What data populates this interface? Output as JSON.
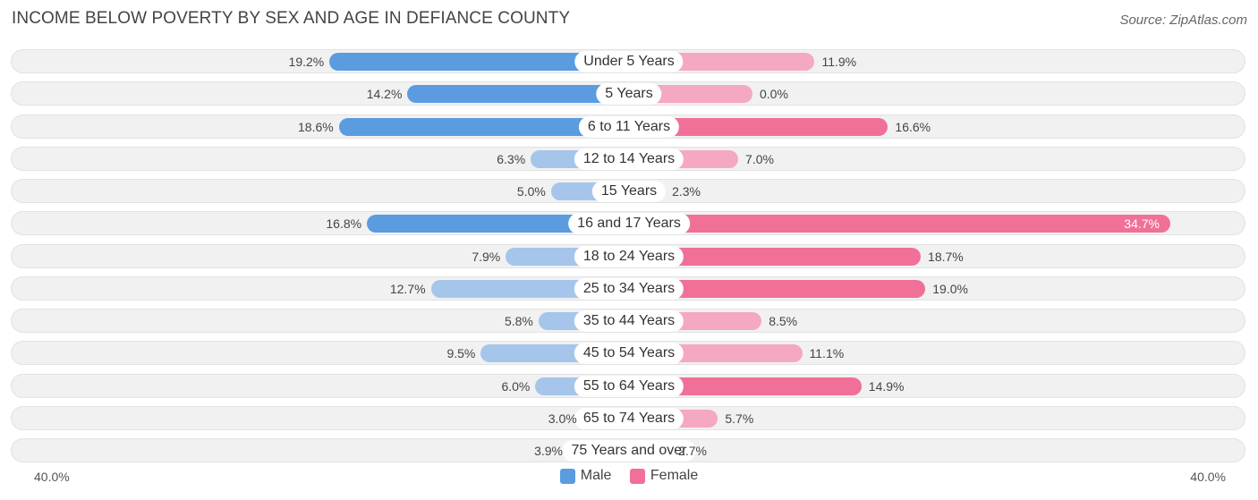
{
  "title": "INCOME BELOW POVERTY BY SEX AND AGE IN DEFIANCE COUNTY",
  "source": "Source: ZipAtlas.com",
  "colors": {
    "male_strong": "#5b9be0",
    "male_light": "#a5c5eb",
    "female_strong": "#f07098",
    "female_light": "#f5a8c1"
  },
  "legend": {
    "male": "Male",
    "female": "Female"
  },
  "axis": {
    "left_label": "40.0%",
    "right_label": "40.0%"
  },
  "chart_data": {
    "type": "bar",
    "orientation": "horizontal-diverging",
    "title": "INCOME BELOW POVERTY BY SEX AND AGE IN DEFIANCE COUNTY",
    "xlim": [
      -40,
      40
    ],
    "unit": "%",
    "categories": [
      "Under 5 Years",
      "5 Years",
      "6 to 11 Years",
      "12 to 14 Years",
      "15 Years",
      "16 and 17 Years",
      "18 to 24 Years",
      "25 to 34 Years",
      "35 to 44 Years",
      "45 to 54 Years",
      "55 to 64 Years",
      "65 to 74 Years",
      "75 Years and over"
    ],
    "series": [
      {
        "name": "Male",
        "values": [
          19.2,
          14.2,
          18.6,
          6.3,
          5.0,
          16.8,
          7.9,
          12.7,
          5.8,
          9.5,
          6.0,
          3.0,
          3.9
        ],
        "labels": [
          "19.2%",
          "14.2%",
          "18.6%",
          "6.3%",
          "5.0%",
          "16.8%",
          "7.9%",
          "12.7%",
          "5.8%",
          "9.5%",
          "6.0%",
          "3.0%",
          "3.9%"
        ]
      },
      {
        "name": "Female",
        "values": [
          11.9,
          0.0,
          16.6,
          7.0,
          2.3,
          34.7,
          18.7,
          19.0,
          8.5,
          11.1,
          14.9,
          5.7,
          2.7
        ],
        "labels": [
          "11.9%",
          "0.0%",
          "16.6%",
          "7.0%",
          "2.3%",
          "34.7%",
          "18.7%",
          "19.0%",
          "8.5%",
          "11.1%",
          "14.9%",
          "5.7%",
          "2.7%"
        ]
      }
    ]
  }
}
